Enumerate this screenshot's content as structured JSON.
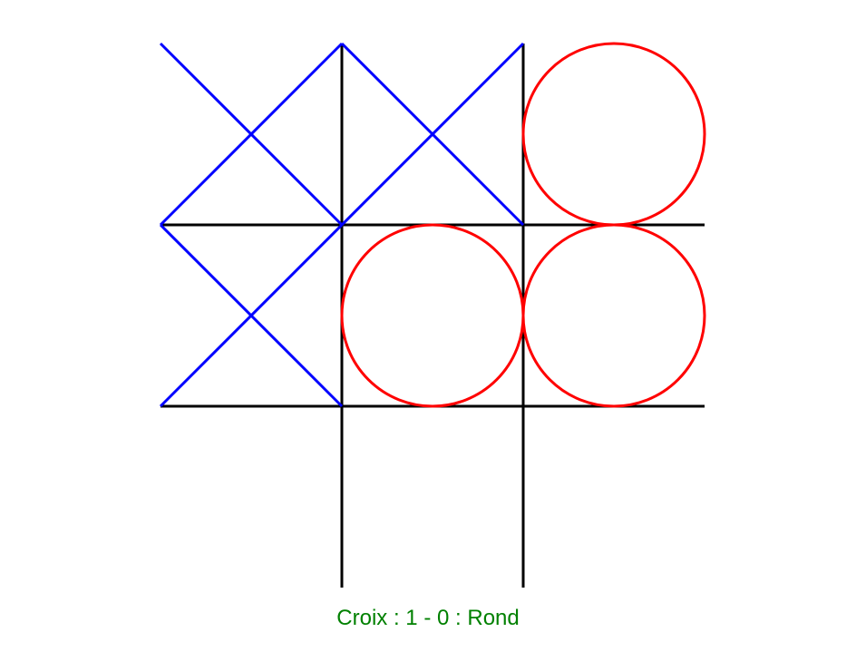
{
  "game": {
    "board": [
      [
        "X",
        "X",
        "O"
      ],
      [
        "X",
        "O",
        "O"
      ],
      [
        "",
        "",
        ""
      ]
    ]
  },
  "score": {
    "player1_name": "Croix",
    "player1_score": "1",
    "separator": " - ",
    "colon": " : ",
    "player2_score": "0",
    "player2_name": "Rond",
    "color": "#008000"
  },
  "colors": {
    "grid": "#000000",
    "cross": "#0000ff",
    "circle": "#ff0000",
    "background": "#ffffff"
  }
}
